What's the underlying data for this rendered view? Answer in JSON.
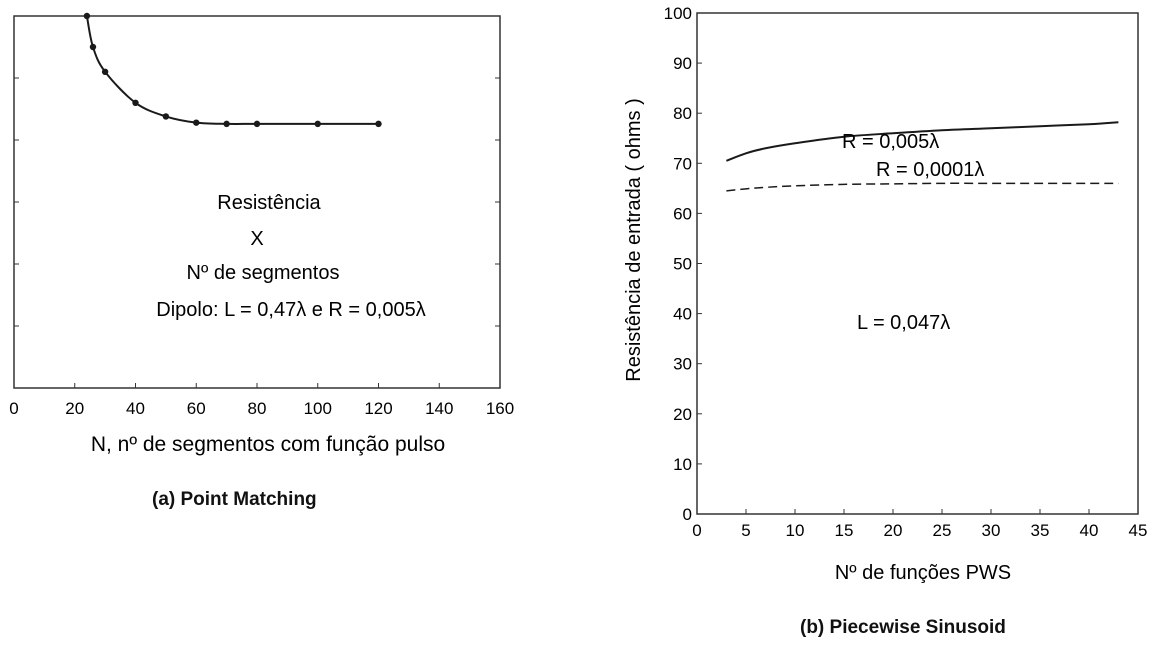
{
  "chart_data": [
    {
      "type": "line",
      "panel": "a",
      "caption": "(a)  Point Matching",
      "xlabel": "N, nº de segmentos com função pulso",
      "ylabel": "",
      "xlim": [
        0,
        160
      ],
      "ylim": [
        55,
        85
      ],
      "x_ticks": [
        0,
        20,
        40,
        60,
        80,
        100,
        120,
        140,
        160
      ],
      "x_tick_labels": [
        "0",
        "20",
        "40",
        "60",
        "80",
        "100",
        "120",
        "140",
        "160"
      ],
      "y_ticks": [
        55,
        60,
        65,
        70,
        75,
        80,
        85
      ],
      "y_tick_labels": [],
      "series": [
        {
          "x": [
            24,
            26,
            30,
            40,
            50,
            60,
            70,
            80,
            100,
            120
          ],
          "values": [
            85,
            82.5,
            80.5,
            78,
            76.9,
            76.4,
            76.3,
            76.3,
            76.3,
            76.3
          ],
          "style": "solid",
          "markers": true
        }
      ],
      "annotations": [
        "Resistência",
        "X",
        "Nº de segmentos",
        "Dipolo: L = 0,47λ e R = 0,005λ"
      ]
    },
    {
      "type": "line",
      "panel": "b",
      "caption": "(b) Piecewise Sinusoid",
      "xlabel": "Nº de funções PWS",
      "ylabel": "Resistência de entrada ( ohms )",
      "xlim": [
        0,
        45
      ],
      "ylim": [
        0,
        100
      ],
      "x_ticks": [
        0,
        5,
        10,
        15,
        20,
        25,
        30,
        35,
        40,
        45
      ],
      "x_tick_labels": [
        "0",
        "5",
        "10",
        "15",
        "20",
        "25",
        "30",
        "35",
        "40",
        "45"
      ],
      "y_ticks": [
        0,
        10,
        20,
        30,
        40,
        50,
        60,
        70,
        80,
        90,
        100
      ],
      "y_tick_labels": [
        "0",
        "10",
        "20",
        "30",
        "40",
        "50",
        "60",
        "70",
        "80",
        "90",
        "100"
      ],
      "series": [
        {
          "name": "R = 0,005λ",
          "x": [
            3,
            5,
            7,
            10,
            15,
            20,
            25,
            30,
            35,
            40,
            43
          ],
          "values": [
            70.5,
            72,
            73,
            74,
            75.3,
            76,
            76.6,
            77,
            77.4,
            77.8,
            78.2
          ],
          "style": "solid"
        },
        {
          "name": "R = 0,0001λ",
          "x": [
            3,
            5,
            7,
            10,
            15,
            20,
            25,
            30,
            35,
            40,
            43
          ],
          "values": [
            64.5,
            64.9,
            65.2,
            65.5,
            65.8,
            65.9,
            66,
            66,
            66,
            66,
            66
          ],
          "style": "dashed"
        }
      ],
      "annotations": [
        "L = 0,047λ"
      ]
    }
  ]
}
